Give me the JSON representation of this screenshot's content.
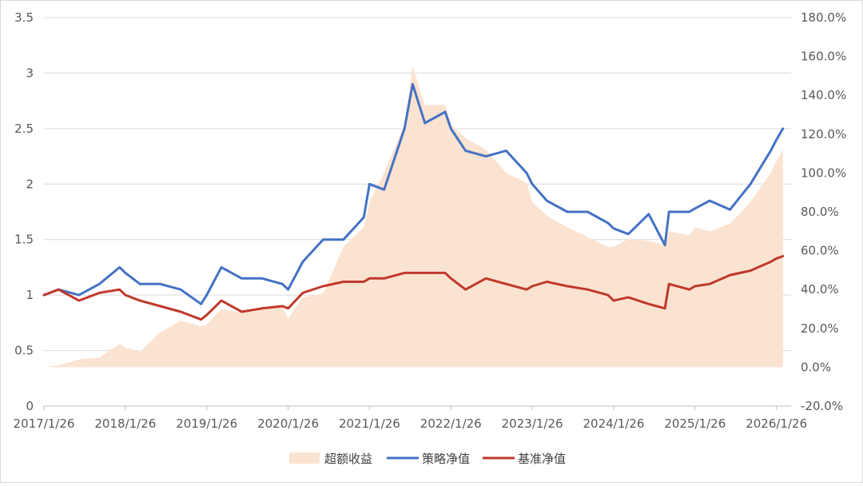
{
  "chart_data": {
    "type": "line",
    "title": "",
    "x_tick_labels": [
      "2017/1/26",
      "2018/1/26",
      "2019/1/26",
      "2020/1/26",
      "2021/1/26",
      "2022/1/26",
      "2023/1/26",
      "2024/1/26",
      "2025/1/26",
      "2026/1/26"
    ],
    "y_left": {
      "range": [
        0,
        3.5
      ],
      "ticks": [
        "0",
        "0.5",
        "1",
        "1.5",
        "2",
        "2.5",
        "3",
        "3.5"
      ]
    },
    "y_right": {
      "range": [
        -20,
        180
      ],
      "ticks": [
        "-20.0%",
        "0.0%",
        "20.0%",
        "40.0%",
        "60.0%",
        "80.0%",
        "100.0%",
        "120.0%",
        "140.0%",
        "160.0%",
        "180.0%"
      ]
    },
    "x": [
      2017.07,
      2017.25,
      2017.5,
      2017.75,
      2018.0,
      2018.07,
      2018.25,
      2018.5,
      2018.75,
      2019.0,
      2019.07,
      2019.25,
      2019.5,
      2019.75,
      2020.0,
      2020.07,
      2020.25,
      2020.5,
      2020.75,
      2021.0,
      2021.07,
      2021.25,
      2021.5,
      2021.6,
      2021.75,
      2022.0,
      2022.07,
      2022.25,
      2022.5,
      2022.75,
      2023.0,
      2023.07,
      2023.25,
      2023.5,
      2023.75,
      2024.0,
      2024.07,
      2024.25,
      2024.5,
      2024.7,
      2024.75,
      2025.0,
      2025.07,
      2025.25,
      2025.5,
      2025.75,
      2026.0,
      2026.07,
      2026.15
    ],
    "series": [
      {
        "name": "超额收益",
        "kind": "area",
        "axis": "right",
        "color": "#fbe3d1",
        "values": [
          0,
          1,
          4,
          5,
          12,
          10,
          8,
          18,
          24,
          21,
          22,
          30,
          28,
          31,
          31,
          25,
          36,
          38,
          62,
          72,
          85,
          100,
          125,
          155,
          135,
          135,
          125,
          118,
          112,
          100,
          95,
          85,
          78,
          72,
          67,
          62,
          62,
          66,
          65,
          63,
          70,
          68,
          72,
          70,
          74,
          85,
          100,
          106,
          112
        ]
      },
      {
        "name": "策略净值",
        "kind": "line",
        "axis": "left",
        "color": "#4472c4",
        "values": [
          1.0,
          1.05,
          1.0,
          1.1,
          1.25,
          1.2,
          1.1,
          1.1,
          1.05,
          0.92,
          1.0,
          1.25,
          1.15,
          1.15,
          1.1,
          1.05,
          1.3,
          1.5,
          1.5,
          1.7,
          2.0,
          1.95,
          2.5,
          2.9,
          2.55,
          2.65,
          2.5,
          2.3,
          2.25,
          2.3,
          2.1,
          2.0,
          1.85,
          1.75,
          1.75,
          1.65,
          1.6,
          1.55,
          1.73,
          1.45,
          1.75,
          1.75,
          1.78,
          1.85,
          1.77,
          2.0,
          2.3,
          2.4,
          2.5
        ]
      },
      {
        "name": "基准净值",
        "kind": "line",
        "axis": "left",
        "color": "#c0392b",
        "values": [
          1.0,
          1.05,
          0.95,
          1.02,
          1.05,
          1.0,
          0.95,
          0.9,
          0.85,
          0.78,
          0.82,
          0.95,
          0.85,
          0.88,
          0.9,
          0.88,
          1.02,
          1.08,
          1.12,
          1.12,
          1.15,
          1.15,
          1.2,
          1.2,
          1.2,
          1.2,
          1.15,
          1.05,
          1.15,
          1.1,
          1.05,
          1.08,
          1.12,
          1.08,
          1.05,
          1.0,
          0.95,
          0.98,
          0.92,
          0.88,
          1.1,
          1.05,
          1.08,
          1.1,
          1.18,
          1.22,
          1.3,
          1.33,
          1.35
        ]
      }
    ],
    "legend": {
      "placement": "bottom",
      "items": [
        "超额收益",
        "策略净值",
        "基准净值"
      ]
    },
    "grid": "horizontal"
  }
}
